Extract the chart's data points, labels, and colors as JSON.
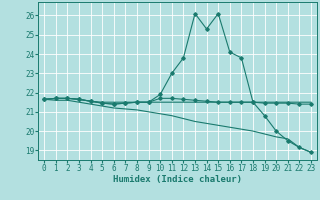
{
  "xlabel": "Humidex (Indice chaleur)",
  "background_color": "#b3e0e0",
  "grid_color": "#ffffff",
  "line_color": "#1a7a6e",
  "xlim": [
    -0.5,
    23.5
  ],
  "ylim": [
    18.5,
    26.7
  ],
  "yticks": [
    19,
    20,
    21,
    22,
    23,
    24,
    25,
    26
  ],
  "xticks": [
    0,
    1,
    2,
    3,
    4,
    5,
    6,
    7,
    8,
    9,
    10,
    11,
    12,
    13,
    14,
    15,
    16,
    17,
    18,
    19,
    20,
    21,
    22,
    23
  ],
  "series": [
    {
      "x": [
        0,
        1,
        2,
        3,
        4,
        5,
        6,
        7,
        8,
        9,
        10,
        11,
        12,
        13,
        14,
        15,
        16,
        17,
        18,
        19,
        20,
        21,
        22,
        23
      ],
      "y": [
        21.65,
        21.7,
        21.7,
        21.65,
        21.55,
        21.5,
        21.5,
        21.5,
        21.5,
        21.5,
        21.5,
        21.5,
        21.5,
        21.5,
        21.5,
        21.5,
        21.5,
        21.5,
        21.5,
        21.5,
        21.5,
        21.5,
        21.5,
        21.5
      ],
      "marker": false
    },
    {
      "x": [
        0,
        1,
        2,
        3,
        4,
        5,
        6,
        7,
        8,
        9,
        10,
        11,
        12,
        13,
        14,
        15,
        16,
        17,
        18,
        19,
        20,
        21,
        22,
        23
      ],
      "y": [
        21.65,
        21.7,
        21.7,
        21.65,
        21.55,
        21.45,
        21.4,
        21.45,
        21.5,
        21.5,
        21.9,
        23.0,
        23.8,
        26.1,
        25.3,
        26.1,
        24.1,
        23.8,
        21.5,
        20.8,
        20.0,
        19.5,
        19.15,
        18.9
      ],
      "marker": true
    },
    {
      "x": [
        0,
        1,
        2,
        3,
        4,
        5,
        6,
        7,
        8,
        9,
        10,
        11,
        12,
        13,
        14,
        15,
        16,
        17,
        18,
        19,
        20,
        21,
        22,
        23
      ],
      "y": [
        21.65,
        21.7,
        21.7,
        21.65,
        21.55,
        21.45,
        21.4,
        21.45,
        21.5,
        21.5,
        21.7,
        21.7,
        21.65,
        21.6,
        21.55,
        21.5,
        21.5,
        21.5,
        21.5,
        21.45,
        21.45,
        21.45,
        21.4,
        21.4
      ],
      "marker": true
    },
    {
      "x": [
        0,
        1,
        2,
        3,
        4,
        5,
        6,
        7,
        8,
        9,
        10,
        11,
        12,
        13,
        14,
        15,
        16,
        17,
        18,
        19,
        20,
        21,
        22,
        23
      ],
      "y": [
        21.65,
        21.6,
        21.6,
        21.5,
        21.4,
        21.3,
        21.2,
        21.15,
        21.1,
        21.0,
        20.9,
        20.8,
        20.65,
        20.5,
        20.4,
        20.3,
        20.2,
        20.1,
        20.0,
        19.85,
        19.7,
        19.6,
        19.15,
        18.9
      ],
      "marker": false
    }
  ]
}
